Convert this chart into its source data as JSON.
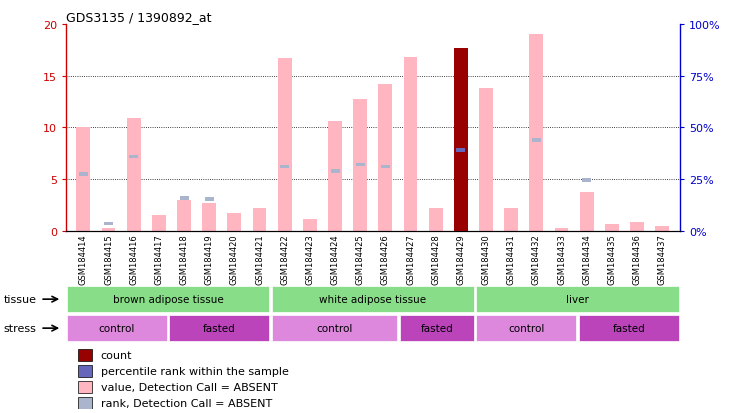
{
  "title": "GDS3135 / 1390892_at",
  "samples": [
    "GSM184414",
    "GSM184415",
    "GSM184416",
    "GSM184417",
    "GSM184418",
    "GSM184419",
    "GSM184420",
    "GSM184421",
    "GSM184422",
    "GSM184423",
    "GSM184424",
    "GSM184425",
    "GSM184426",
    "GSM184427",
    "GSM184428",
    "GSM184429",
    "GSM184430",
    "GSM184431",
    "GSM184432",
    "GSM184433",
    "GSM184434",
    "GSM184435",
    "GSM184436",
    "GSM184437"
  ],
  "pink_values": [
    10.0,
    0.3,
    10.9,
    1.5,
    3.0,
    2.7,
    1.7,
    2.2,
    16.7,
    1.1,
    10.6,
    12.7,
    14.2,
    16.8,
    2.2,
    0.0,
    13.8,
    2.2,
    19.0,
    0.3,
    3.8,
    0.7,
    0.9,
    0.5
  ],
  "blue_ranks": [
    27.5,
    3.5,
    36.0,
    0.0,
    16.0,
    15.5,
    0.0,
    0.0,
    31.0,
    0.0,
    29.0,
    32.0,
    31.0,
    0.0,
    0.0,
    39.0,
    0.0,
    0.0,
    44.0,
    0.0,
    24.5,
    0.0,
    0.0,
    0.0
  ],
  "count_bar_idx": 15,
  "count_value": 17.7,
  "ylim_left": [
    0,
    20
  ],
  "ylim_right": [
    0,
    100
  ],
  "left_yticks": [
    0,
    5,
    10,
    15,
    20
  ],
  "right_yticks": [
    0,
    25,
    50,
    75,
    100
  ],
  "tissue_groups": [
    {
      "label": "brown adipose tissue",
      "start": 0,
      "end": 8
    },
    {
      "label": "white adipose tissue",
      "start": 8,
      "end": 16
    },
    {
      "label": "liver",
      "start": 16,
      "end": 24
    }
  ],
  "stress_groups": [
    {
      "label": "control",
      "start": 0,
      "end": 4,
      "light": true
    },
    {
      "label": "fasted",
      "start": 4,
      "end": 8,
      "light": false
    },
    {
      "label": "control",
      "start": 8,
      "end": 13,
      "light": true
    },
    {
      "label": "fasted",
      "start": 13,
      "end": 16,
      "light": false
    },
    {
      "label": "control",
      "start": 16,
      "end": 20,
      "light": true
    },
    {
      "label": "fasted",
      "start": 20,
      "end": 24,
      "light": false
    }
  ],
  "pink_color": "#ffb6c1",
  "blue_color": "#6666bb",
  "rank_absent_color": "#aab4cc",
  "dark_red_color": "#990000",
  "bar_width": 0.55,
  "tissue_color": "#88dd88",
  "stress_light": "#dd88dd",
  "stress_dark": "#bb44bb",
  "label_area_color": "#cccccc",
  "grid_color": "#000000",
  "right_axis_color": "#0000cc",
  "left_axis_color": "#cc0000"
}
